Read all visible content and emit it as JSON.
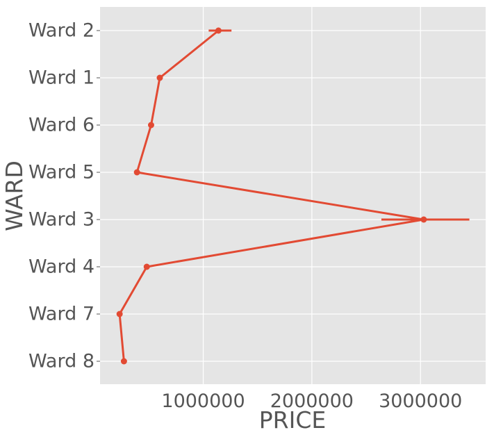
{
  "chart_data": {
    "type": "line",
    "title": "",
    "xlabel": "PRICE",
    "ylabel": "WARD",
    "orientation": "horizontal",
    "xlim": [
      50000,
      3600000
    ],
    "x_ticks": [
      1000000,
      2000000,
      3000000
    ],
    "x_tick_labels": [
      "1000000",
      "2000000",
      "3000000"
    ],
    "categories": [
      "Ward 2",
      "Ward 1",
      "Ward 6",
      "Ward 5",
      "Ward 3",
      "Ward 4",
      "Ward 7",
      "Ward 8"
    ],
    "series": [
      {
        "values": [
          1140000,
          600000,
          520000,
          390000,
          3030000,
          480000,
          230000,
          270000
        ],
        "error_low": [
          1050000,
          600000,
          520000,
          390000,
          2640000,
          480000,
          230000,
          270000
        ],
        "error_high": [
          1260000,
          600000,
          520000,
          390000,
          3450000,
          480000,
          230000,
          270000
        ]
      }
    ],
    "grid": true,
    "colors": {
      "line": "#E24A33",
      "plot_background": "#E5E5E5",
      "grid": "#FFFFFF",
      "text": "#555555"
    }
  }
}
